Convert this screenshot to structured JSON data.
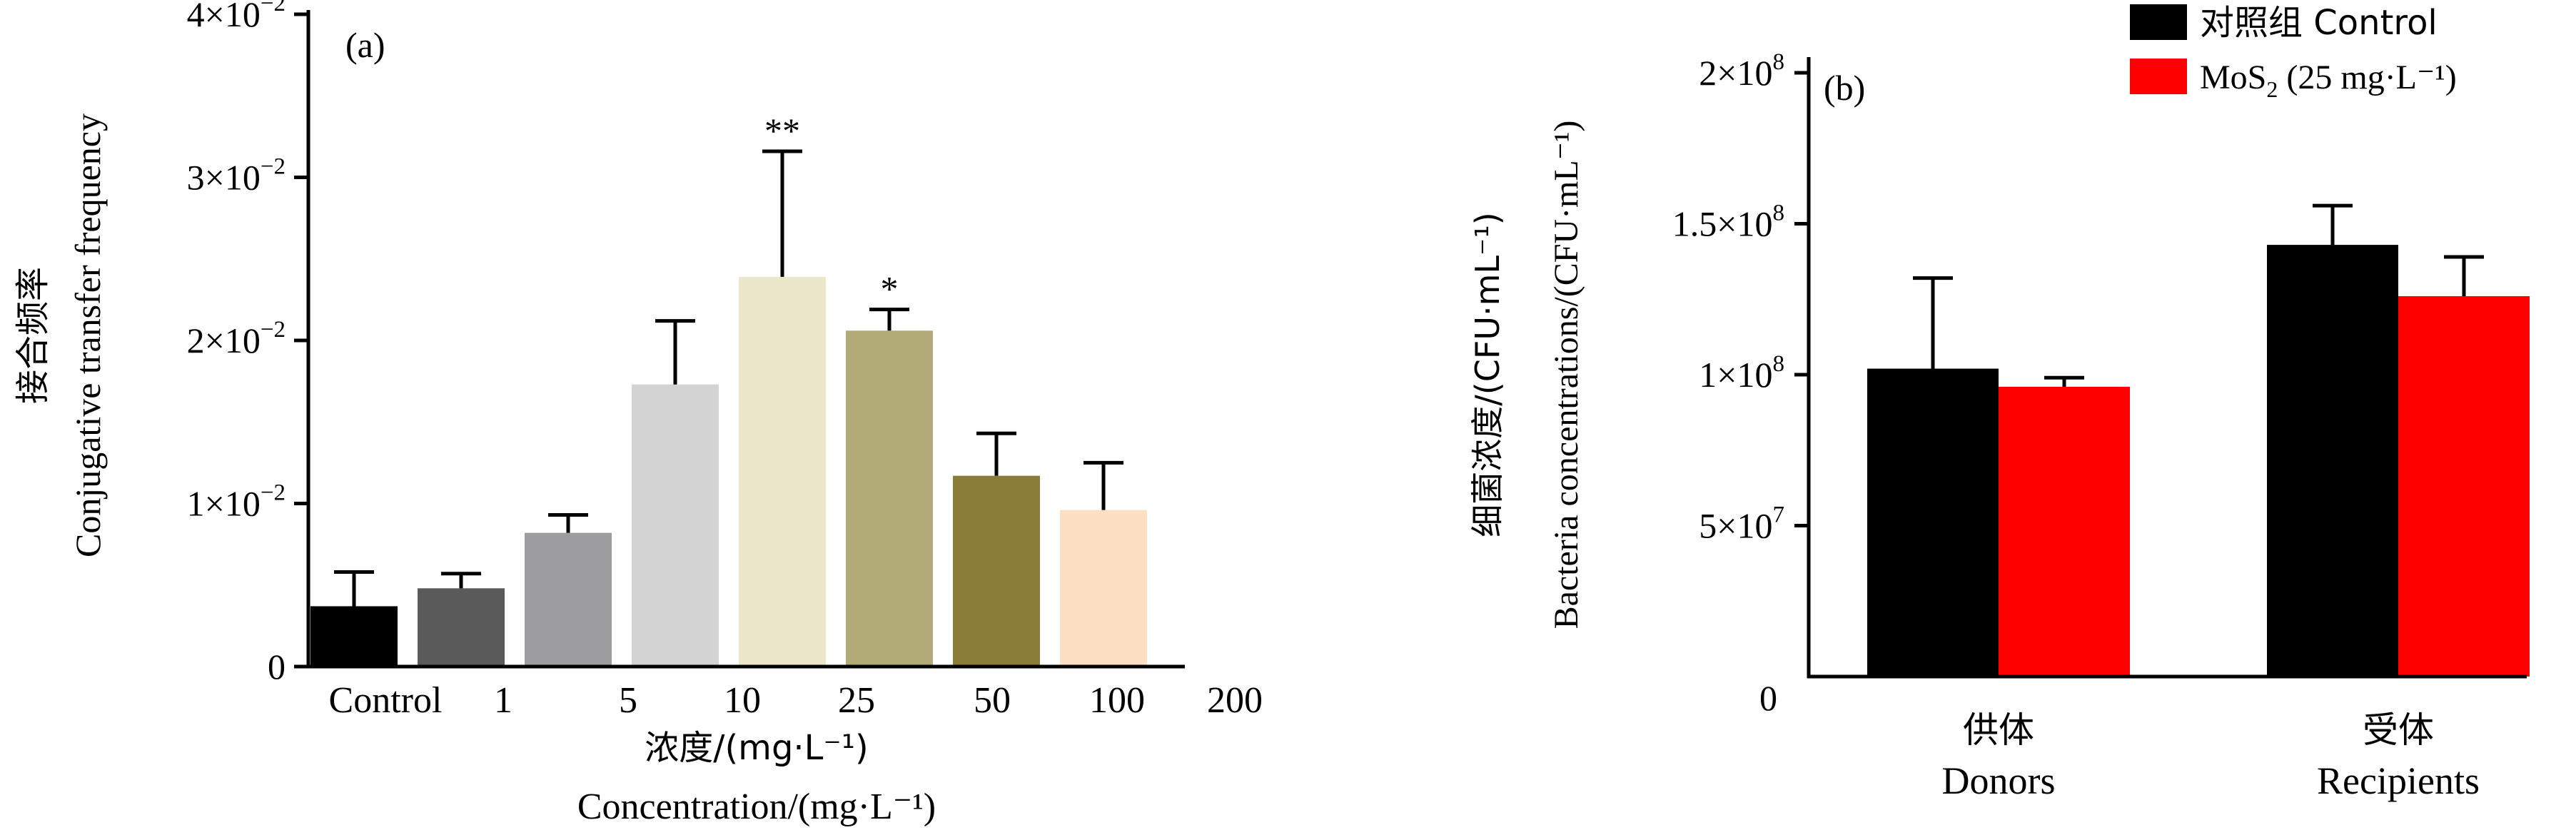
{
  "chart_data": [
    {
      "panel_label": "(a)",
      "type": "bar",
      "ylabel_cn": "接合频率",
      "ylabel_en": "Conjugative transfer frequency",
      "xlabel_cn": "浓度/(mg·L⁻¹)",
      "xlabel_en": "Concentration/(mg·L⁻¹)",
      "x_tick_labels": [
        "Control",
        "1",
        "5",
        "10",
        "25",
        "50",
        "100",
        "200"
      ],
      "y_ticks": [
        {
          "value": 0,
          "mantissa": "0",
          "exp": ""
        },
        {
          "value": 0.01,
          "mantissa": "1×10",
          "exp": "−2"
        },
        {
          "value": 0.02,
          "mantissa": "2×10",
          "exp": "−2"
        },
        {
          "value": 0.03,
          "mantissa": "3×10",
          "exp": "−2"
        },
        {
          "value": 0.04,
          "mantissa": "4×10",
          "exp": "−2"
        }
      ],
      "ylim": [
        0,
        0.04
      ],
      "bars": [
        {
          "value": 0.0037,
          "error": 0.0021,
          "color": "#000000",
          "sig": ""
        },
        {
          "value": 0.0048,
          "error": 0.0009,
          "color": "#5a5a5a",
          "sig": ""
        },
        {
          "value": 0.0082,
          "error": 0.0011,
          "color": "#9d9d9f",
          "sig": ""
        },
        {
          "value": 0.0173,
          "error": 0.0039,
          "color": "#d3d3d3",
          "sig": ""
        },
        {
          "value": 0.0239,
          "error": 0.0077,
          "color": "#ece6ca",
          "sig": "**"
        },
        {
          "value": 0.0206,
          "error": 0.0013,
          "color": "#b2aa76",
          "sig": "*"
        },
        {
          "value": 0.0117,
          "error": 0.0026,
          "color": "#8a7d3a",
          "sig": ""
        },
        {
          "value": 0.0096,
          "error": 0.0029,
          "color": "#fde0c3",
          "sig": ""
        }
      ]
    },
    {
      "panel_label": "(b)",
      "type": "bar",
      "ylabel_cn": "细菌浓度/(CFU·mL⁻¹)",
      "ylabel_en": "Bacteria concentrations/(CFU·mL⁻¹)",
      "categories": [
        {
          "cn": "供体",
          "en": "Donors"
        },
        {
          "cn": "受体",
          "en": "Recipients"
        }
      ],
      "y_ticks": [
        {
          "value": 0,
          "mantissa": "0",
          "exp": ""
        },
        {
          "value": 50000000,
          "mantissa": "5×10",
          "exp": "7"
        },
        {
          "value": 100000000,
          "mantissa": "1×10",
          "exp": "8"
        },
        {
          "value": 150000000,
          "mantissa": "1.5×10",
          "exp": "8"
        },
        {
          "value": 200000000,
          "mantissa": "2×10",
          "exp": "8"
        }
      ],
      "ylim": [
        0,
        200000000
      ],
      "series": [
        {
          "name": "对照组 Control",
          "color": "#000000",
          "values": [
            102000000,
            143000000
          ],
          "errors": [
            30000000,
            13000000
          ]
        },
        {
          "name_main": "MoS",
          "name_sub": "2",
          "name_rest": " (25 mg·L⁻¹)",
          "color": "#ff0000",
          "values": [
            96000000,
            126000000
          ],
          "errors": [
            3000000,
            13000000
          ]
        }
      ],
      "legend_position": "top-right"
    }
  ]
}
